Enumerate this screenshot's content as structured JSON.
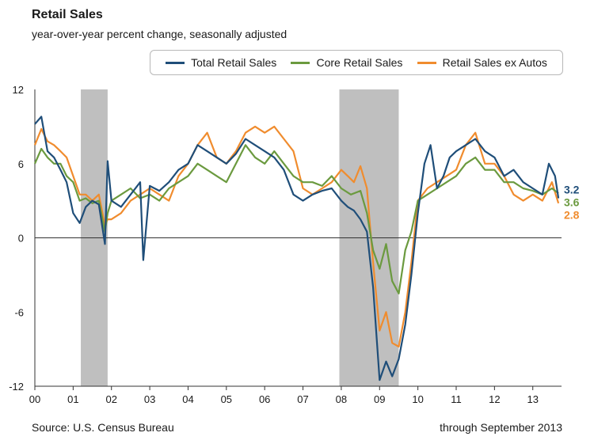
{
  "header": {
    "title": "Retail Sales",
    "subtitle": "year-over-year percent change, seasonally adjusted"
  },
  "footer": {
    "source": "Source: U.S. Census Bureau",
    "note": "through September 2013"
  },
  "chart_data": {
    "type": "line",
    "title": "Retail Sales",
    "subtitle": "year-over-year percent change, seasonally adjusted",
    "xlabel": "",
    "ylabel": "",
    "xlim": [
      2000.0,
      2013.75
    ],
    "ylim": [
      -12,
      12
    ],
    "yticks": [
      12,
      6,
      0,
      -6,
      -12
    ],
    "xtick_labels": [
      "00",
      "01",
      "02",
      "03",
      "04",
      "05",
      "06",
      "07",
      "08",
      "09",
      "10",
      "11",
      "12",
      "13"
    ],
    "grid": false,
    "legend_position": "top-right",
    "recessions": [
      [
        2001.2,
        2001.9
      ],
      [
        2007.95,
        2009.5
      ]
    ],
    "series": [
      {
        "name": "Total Retail Sales",
        "color": "#1f4e79",
        "end_label": "3.2",
        "x": [
          2000.0,
          2000.17,
          2000.33,
          2000.5,
          2000.67,
          2000.83,
          2001.0,
          2001.17,
          2001.33,
          2001.5,
          2001.67,
          2001.83,
          2001.9,
          2002.0,
          2002.25,
          2002.5,
          2002.75,
          2002.83,
          2003.0,
          2003.25,
          2003.5,
          2003.75,
          2004.0,
          2004.25,
          2004.5,
          2004.75,
          2005.0,
          2005.25,
          2005.5,
          2005.75,
          2006.0,
          2006.25,
          2006.5,
          2006.75,
          2007.0,
          2007.25,
          2007.5,
          2007.75,
          2008.0,
          2008.17,
          2008.33,
          2008.5,
          2008.67,
          2008.83,
          2009.0,
          2009.17,
          2009.33,
          2009.5,
          2009.67,
          2009.83,
          2010.0,
          2010.17,
          2010.33,
          2010.5,
          2010.67,
          2010.83,
          2011.0,
          2011.25,
          2011.5,
          2011.75,
          2012.0,
          2012.25,
          2012.5,
          2012.75,
          2013.0,
          2013.25,
          2013.42,
          2013.58,
          2013.67
        ],
        "values": [
          9.2,
          9.8,
          7.0,
          6.5,
          5.5,
          4.5,
          2.0,
          1.2,
          2.5,
          3.0,
          2.7,
          -0.5,
          6.2,
          3.0,
          2.5,
          3.5,
          4.5,
          -1.8,
          4.2,
          3.8,
          4.5,
          5.5,
          6.0,
          7.5,
          7.0,
          6.5,
          6.0,
          6.8,
          8.0,
          7.5,
          7.0,
          6.5,
          5.5,
          3.5,
          3.0,
          3.5,
          3.8,
          4.0,
          3.0,
          2.5,
          2.2,
          1.5,
          0.5,
          -4.0,
          -11.5,
          -10.0,
          -11.2,
          -9.8,
          -7.0,
          -3.0,
          2.0,
          6.0,
          7.5,
          4.0,
          5.0,
          6.5,
          7.0,
          7.5,
          8.0,
          7.0,
          6.5,
          5.0,
          5.5,
          4.5,
          4.0,
          3.5,
          6.0,
          5.0,
          3.2
        ]
      },
      {
        "name": "Core Retail Sales",
        "color": "#6b9a3f",
        "end_label": "3.6",
        "x": [
          2000.0,
          2000.17,
          2000.33,
          2000.5,
          2000.67,
          2000.83,
          2001.0,
          2001.17,
          2001.33,
          2001.5,
          2001.67,
          2001.83,
          2001.9,
          2002.0,
          2002.25,
          2002.5,
          2002.75,
          2003.0,
          2003.25,
          2003.5,
          2003.75,
          2004.0,
          2004.25,
          2004.5,
          2004.75,
          2005.0,
          2005.25,
          2005.5,
          2005.75,
          2006.0,
          2006.25,
          2006.5,
          2006.75,
          2007.0,
          2007.25,
          2007.5,
          2007.75,
          2008.0,
          2008.25,
          2008.5,
          2008.67,
          2008.83,
          2009.0,
          2009.17,
          2009.33,
          2009.5,
          2009.67,
          2009.83,
          2010.0,
          2010.25,
          2010.5,
          2010.75,
          2011.0,
          2011.25,
          2011.5,
          2011.75,
          2012.0,
          2012.25,
          2012.5,
          2012.75,
          2013.0,
          2013.25,
          2013.5,
          2013.67
        ],
        "values": [
          6.0,
          7.2,
          6.5,
          6.0,
          6.0,
          5.0,
          4.5,
          3.0,
          3.2,
          2.8,
          3.0,
          0.5,
          2.0,
          3.0,
          3.5,
          4.0,
          3.2,
          3.5,
          3.0,
          4.0,
          4.5,
          5.0,
          6.0,
          5.5,
          5.0,
          4.5,
          6.0,
          7.5,
          6.5,
          6.0,
          7.0,
          6.0,
          5.0,
          4.5,
          4.5,
          4.2,
          5.0,
          4.0,
          3.5,
          3.8,
          2.0,
          -1.0,
          -2.5,
          -0.5,
          -3.5,
          -4.5,
          -1.0,
          0.5,
          3.0,
          3.5,
          4.0,
          4.5,
          5.0,
          6.0,
          6.5,
          5.5,
          5.5,
          4.5,
          4.5,
          4.0,
          3.8,
          3.5,
          4.0,
          3.6
        ]
      },
      {
        "name": "Retail Sales ex Autos",
        "color": "#f08c2e",
        "end_label": "2.8",
        "x": [
          2000.0,
          2000.17,
          2000.33,
          2000.5,
          2000.67,
          2000.83,
          2001.0,
          2001.17,
          2001.33,
          2001.5,
          2001.67,
          2001.83,
          2001.9,
          2002.0,
          2002.25,
          2002.5,
          2002.75,
          2003.0,
          2003.25,
          2003.5,
          2003.75,
          2004.0,
          2004.25,
          2004.5,
          2004.75,
          2005.0,
          2005.25,
          2005.5,
          2005.75,
          2006.0,
          2006.25,
          2006.5,
          2006.75,
          2007.0,
          2007.25,
          2007.5,
          2007.75,
          2008.0,
          2008.17,
          2008.33,
          2008.5,
          2008.67,
          2008.83,
          2009.0,
          2009.17,
          2009.33,
          2009.5,
          2009.67,
          2009.83,
          2010.0,
          2010.25,
          2010.5,
          2010.75,
          2011.0,
          2011.25,
          2011.5,
          2011.75,
          2012.0,
          2012.25,
          2012.5,
          2012.75,
          2013.0,
          2013.25,
          2013.5,
          2013.67
        ],
        "values": [
          7.5,
          8.8,
          7.8,
          7.5,
          7.0,
          6.5,
          5.0,
          3.5,
          3.5,
          3.0,
          3.5,
          1.0,
          1.5,
          1.5,
          2.0,
          3.0,
          3.5,
          4.0,
          3.5,
          3.0,
          5.0,
          6.0,
          7.5,
          8.5,
          6.5,
          6.0,
          7.0,
          8.5,
          9.0,
          8.5,
          9.0,
          8.0,
          7.0,
          4.0,
          3.5,
          4.0,
          4.5,
          5.5,
          5.0,
          4.5,
          5.8,
          4.0,
          -2.0,
          -7.5,
          -6.0,
          -8.5,
          -8.8,
          -6.0,
          -2.0,
          3.0,
          4.0,
          4.5,
          5.0,
          5.5,
          7.5,
          8.5,
          6.0,
          6.0,
          5.0,
          3.5,
          3.0,
          3.5,
          3.0,
          4.5,
          2.8
        ]
      }
    ]
  }
}
